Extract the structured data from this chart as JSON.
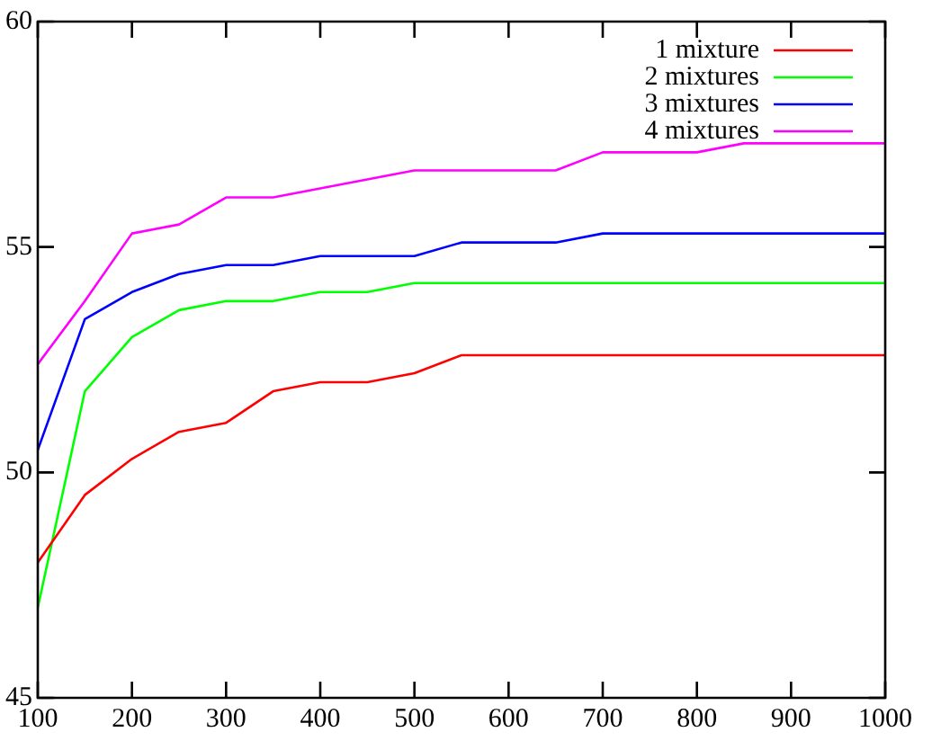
{
  "chart_data": {
    "type": "line",
    "x": [
      100,
      150,
      200,
      250,
      300,
      350,
      400,
      450,
      500,
      550,
      600,
      650,
      700,
      750,
      800,
      850,
      900,
      950,
      1000
    ],
    "series": [
      {
        "name": "1 mixture",
        "color": "#ff0000",
        "values": [
          48.0,
          49.5,
          50.3,
          50.9,
          51.1,
          51.8,
          52.0,
          52.0,
          52.2,
          52.6,
          52.6,
          52.6,
          52.6,
          52.6,
          52.6,
          52.6,
          52.6,
          52.6,
          52.6
        ]
      },
      {
        "name": "2 mixtures",
        "color": "#00ff00",
        "values": [
          47.0,
          51.8,
          53.0,
          53.6,
          53.8,
          53.8,
          54.0,
          54.0,
          54.2,
          54.2,
          54.2,
          54.2,
          54.2,
          54.2,
          54.2,
          54.2,
          54.2,
          54.2,
          54.2
        ]
      },
      {
        "name": "3 mixtures",
        "color": "#0000ff",
        "values": [
          50.5,
          53.4,
          54.0,
          54.4,
          54.6,
          54.6,
          54.8,
          54.8,
          54.8,
          55.1,
          55.1,
          55.1,
          55.3,
          55.3,
          55.3,
          55.3,
          55.3,
          55.3,
          55.3
        ]
      },
      {
        "name": "4 mixtures",
        "color": "#ff00ff",
        "values": [
          52.4,
          53.8,
          55.3,
          55.5,
          56.1,
          56.1,
          56.3,
          56.5,
          56.7,
          56.7,
          56.7,
          56.7,
          57.1,
          57.1,
          57.1,
          57.3,
          57.3,
          57.3,
          57.3
        ]
      }
    ],
    "xlim": [
      100,
      1000
    ],
    "xticks": [
      100,
      200,
      300,
      400,
      500,
      600,
      700,
      800,
      900,
      1000
    ],
    "ylim": [
      45,
      60
    ],
    "yticks": [
      45,
      50,
      55,
      60
    ],
    "legend": "top right",
    "marker": "none",
    "line_style": "solid",
    "grid": false
  }
}
